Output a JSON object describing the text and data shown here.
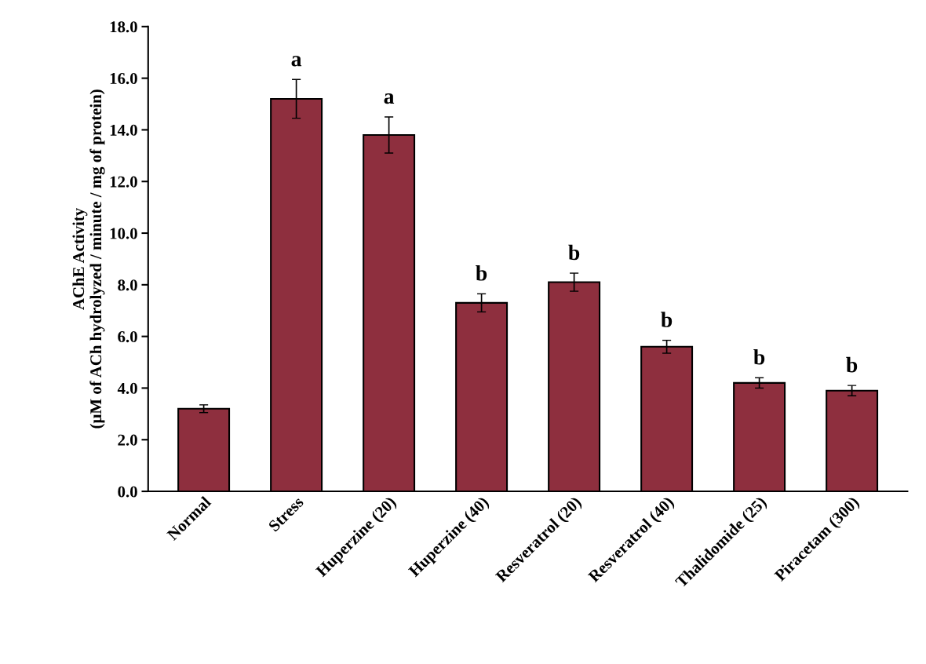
{
  "chart_data": {
    "type": "bar",
    "ylabel": "AChE Activity\n(µM of ACh hydrolyzed / minute / mg of protein)",
    "categories": [
      "Normal",
      "Stress",
      "Huperzine (20)",
      "Huperzine (40)",
      "Resveratrol (20)",
      "Resveratrol (40)",
      "Thalidomide (25)",
      "Piracetam (300)"
    ],
    "values": [
      3.2,
      15.2,
      13.8,
      7.3,
      8.1,
      5.6,
      4.2,
      3.9
    ],
    "errors": [
      0.15,
      0.75,
      0.7,
      0.35,
      0.35,
      0.25,
      0.2,
      0.2
    ],
    "color": "#8e2f3e",
    "ylim": [
      0,
      18
    ],
    "yticks": [
      {
        "value": 0,
        "label": "0.0"
      },
      {
        "value": 2,
        "label": "2.0"
      },
      {
        "value": 4,
        "label": "4.0"
      },
      {
        "value": 6,
        "label": "6.0"
      },
      {
        "value": 8,
        "label": "8.0"
      },
      {
        "value": 10,
        "label": "10.0"
      },
      {
        "value": 12,
        "label": "12.0"
      },
      {
        "value": 14,
        "label": "14.0"
      },
      {
        "value": 16,
        "label": "16.0"
      },
      {
        "value": 18,
        "label": "18.0"
      }
    ],
    "annotations": [
      {
        "text": "a",
        "x": "Stress",
        "y": 15.2
      },
      {
        "text": "a",
        "x": "Huperzine (20)",
        "y": 13.8
      },
      {
        "text": "b",
        "x": "Huperzine (40)",
        "y": 7.3
      },
      {
        "text": "b",
        "x": "Resveratrol (20)",
        "y": 8.1
      },
      {
        "text": "b",
        "x": "Resveratrol (40)",
        "y": 5.6
      },
      {
        "text": "b",
        "x": "Thalidomide (25)",
        "y": 4.2
      },
      {
        "text": "b",
        "x": "Piracetam (300)",
        "y": 3.9
      }
    ],
    "grid": false
  }
}
